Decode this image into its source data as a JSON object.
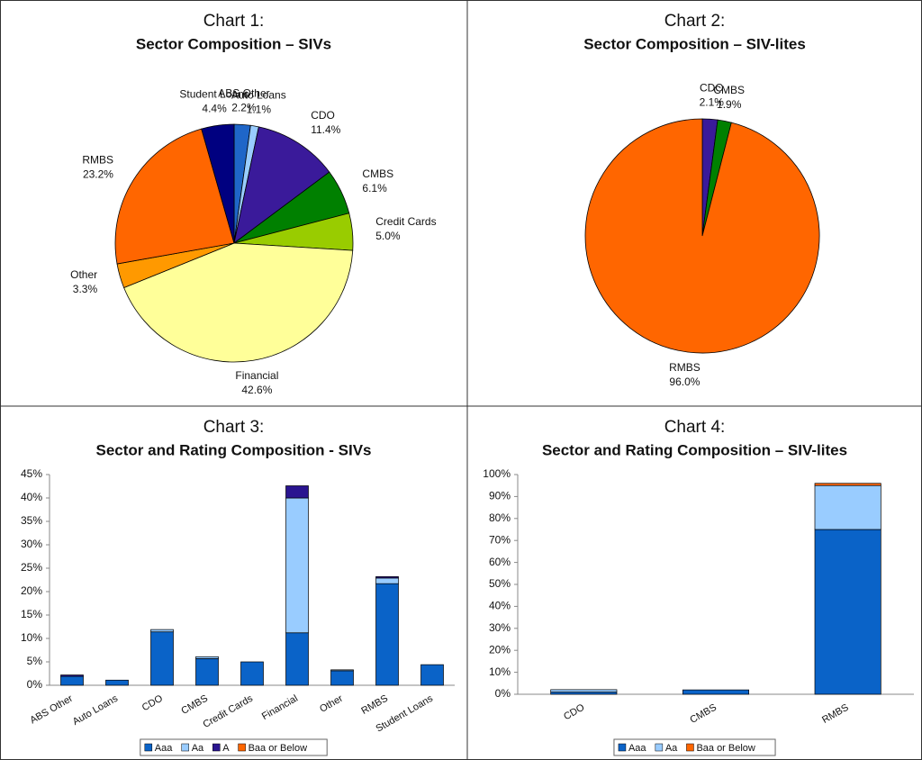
{
  "chart_data": [
    {
      "type": "pie",
      "title": "Chart 1:",
      "subtitle": "Sector Composition – SIVs",
      "categories": [
        "ABS Other",
        "Auto Loans",
        "CDO",
        "CMBS",
        "Credit Cards",
        "Financial",
        "Other",
        "RMBS",
        "Student Loans"
      ],
      "values": [
        2.2,
        1.1,
        11.4,
        6.1,
        5.0,
        42.6,
        3.3,
        23.2,
        4.4
      ],
      "value_labels": [
        "2.2%",
        "1.1%",
        "11.4%",
        "6.1%",
        "5.0%",
        "42.6%",
        "3.3%",
        "23.2%",
        "4.4%"
      ],
      "colors": [
        "#1f66c8",
        "#99ccff",
        "#3a1a9a",
        "#008000",
        "#99cc00",
        "#ffff99",
        "#ff9900",
        "#ff6600",
        "#000080"
      ]
    },
    {
      "type": "pie",
      "title": "Chart 2:",
      "subtitle": "Sector Composition – SIV-lites",
      "categories": [
        "CDO",
        "CMBS",
        "RMBS"
      ],
      "values": [
        2.1,
        1.9,
        96.0
      ],
      "value_labels": [
        "2.1%",
        "1.9%",
        "96.0%"
      ],
      "colors": [
        "#3a1a9a",
        "#008000",
        "#ff6600"
      ]
    },
    {
      "type": "stacked_bar",
      "title": "Chart 3:",
      "subtitle": "Sector and Rating Composition - SIVs",
      "categories": [
        "ABS Other",
        "Auto Loans",
        "CDO",
        "CMBS",
        "Credit Cards",
        "Financial",
        "Other",
        "RMBS",
        "Student Loans"
      ],
      "series": [
        {
          "name": "Aaa",
          "color": "#0a63c8",
          "values": [
            1.9,
            1.1,
            11.4,
            5.7,
            5.0,
            11.2,
            3.1,
            21.7,
            4.4
          ]
        },
        {
          "name": "Aa",
          "color": "#99ccff",
          "values": [
            0,
            0,
            0.5,
            0.4,
            0,
            28.8,
            0.2,
            1.2,
            0
          ]
        },
        {
          "name": "A",
          "color": "#2a1590",
          "values": [
            0.3,
            0,
            0,
            0,
            0,
            2.6,
            0,
            0.3,
            0
          ]
        },
        {
          "name": "Baa or Below",
          "color": "#ff6600",
          "values": [
            0,
            0,
            0,
            0,
            0,
            0,
            0,
            0,
            0
          ]
        }
      ],
      "ylim": [
        0,
        45
      ],
      "yticks": [
        {
          "value": 0,
          "label": "0%"
        },
        {
          "value": 5,
          "label": "5%"
        },
        {
          "value": 10,
          "label": "10%"
        },
        {
          "value": 15,
          "label": "15%"
        },
        {
          "value": 20,
          "label": "20%"
        },
        {
          "value": 25,
          "label": "25%"
        },
        {
          "value": 30,
          "label": "30%"
        },
        {
          "value": 35,
          "label": "35%"
        },
        {
          "value": 40,
          "label": "40%"
        },
        {
          "value": 45,
          "label": "45%"
        }
      ]
    },
    {
      "type": "stacked_bar",
      "title": "Chart 4:",
      "subtitle": "Sector and Rating Composition – SIV-lites",
      "categories": [
        "CDO",
        "CMBS",
        "RMBS"
      ],
      "series": [
        {
          "name": "Aaa",
          "color": "#0a63c8",
          "values": [
            1.0,
            2.0,
            75.0
          ]
        },
        {
          "name": "Aa",
          "color": "#99ccff",
          "values": [
            1.1,
            0,
            20.0
          ]
        },
        {
          "name": "Baa or Below",
          "color": "#ff6600",
          "values": [
            0,
            0,
            1.0
          ]
        }
      ],
      "ylim": [
        0,
        100
      ],
      "yticks": [
        {
          "value": 0,
          "label": "0%"
        },
        {
          "value": 10,
          "label": "10%"
        },
        {
          "value": 20,
          "label": "20%"
        },
        {
          "value": 30,
          "label": "30%"
        },
        {
          "value": 40,
          "label": "40%"
        },
        {
          "value": 50,
          "label": "50%"
        },
        {
          "value": 60,
          "label": "60%"
        },
        {
          "value": 70,
          "label": "70%"
        },
        {
          "value": 80,
          "label": "80%"
        },
        {
          "value": 90,
          "label": "90%"
        },
        {
          "value": 100,
          "label": "100%"
        }
      ]
    }
  ]
}
